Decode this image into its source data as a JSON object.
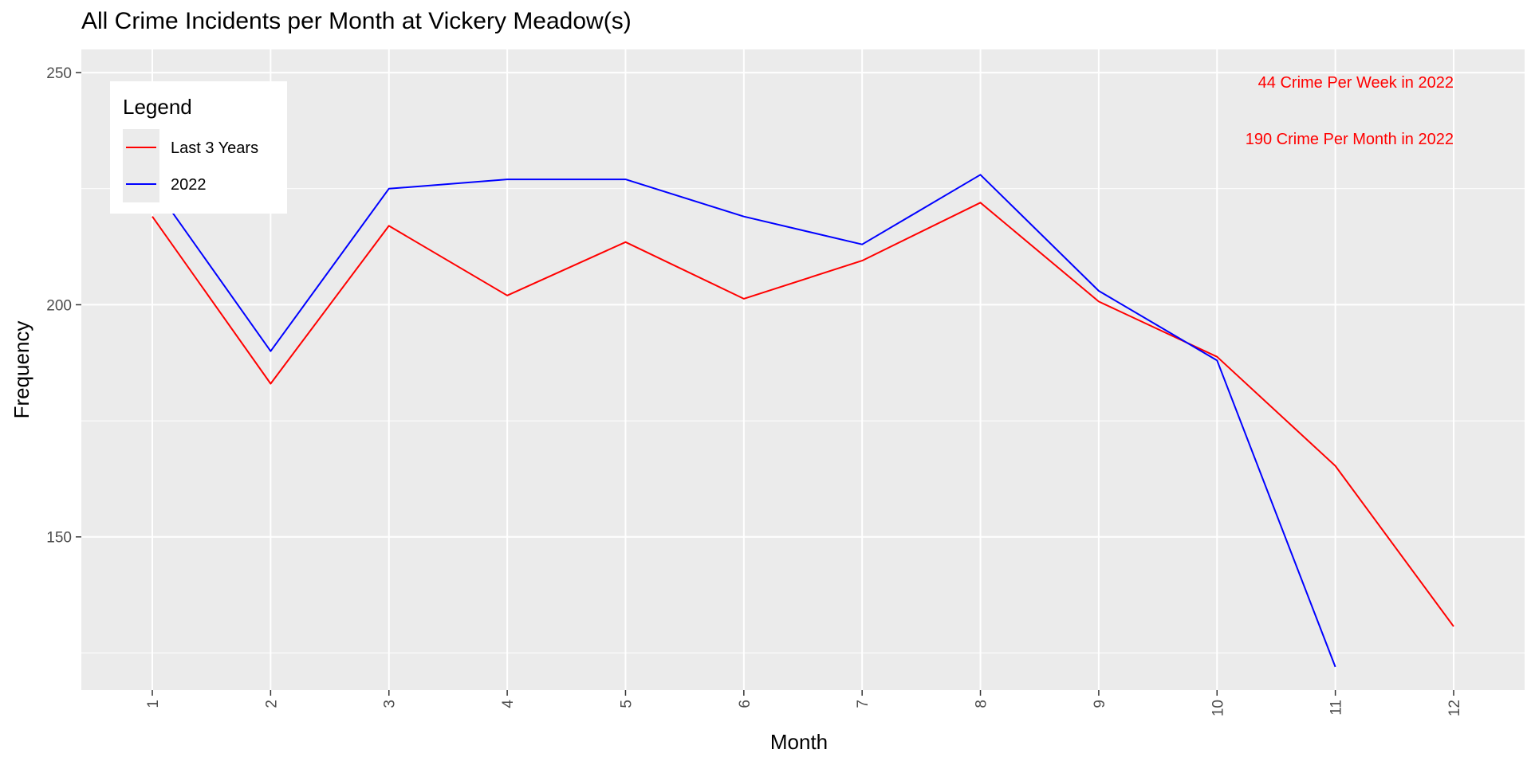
{
  "chart_data": {
    "type": "line",
    "title": "All Crime Incidents per Month at Vickery Meadow(s)",
    "xlabel": "Month",
    "ylabel": "Frequency",
    "x": [
      1,
      2,
      3,
      4,
      5,
      6,
      7,
      8,
      9,
      10,
      11,
      12
    ],
    "xlim": [
      0.4,
      12.6
    ],
    "ylim": [
      117,
      255
    ],
    "yticks": [
      150,
      200,
      250
    ],
    "grid": true,
    "legend_position": "top-left",
    "legend_title": "Legend",
    "series": [
      {
        "name": "Last 3 Years",
        "color": "#ff0000",
        "values": [
          219,
          183,
          217,
          202,
          213.5,
          201.3,
          209.5,
          222,
          200.7,
          188.8,
          165.3,
          130.7
        ]
      },
      {
        "name": "2022",
        "color": "#0000ff",
        "values": [
          226,
          190,
          225,
          227,
          227,
          219,
          213,
          228,
          203,
          188,
          122,
          null
        ]
      }
    ],
    "annotations": [
      {
        "text": "44 Crime Per Week in 2022",
        "x": 12,
        "y": 248,
        "color": "#ff0000"
      },
      {
        "text": "190 Crime Per Month in 2022",
        "x": 12,
        "y": 235.8,
        "color": "#ff0000"
      }
    ]
  }
}
